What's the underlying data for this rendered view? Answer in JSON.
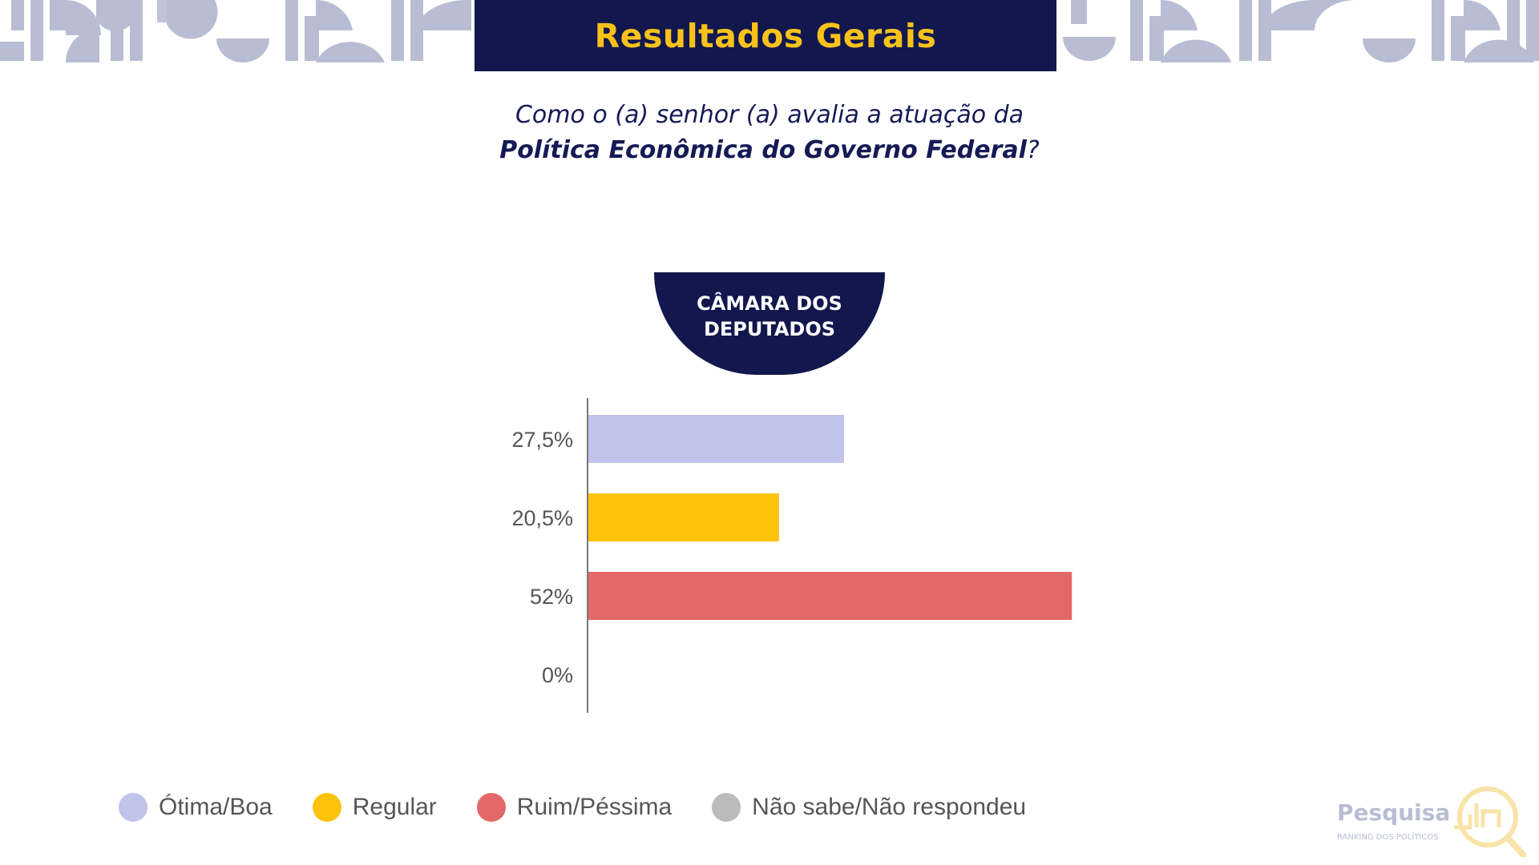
{
  "header": {
    "title": "Resultados Gerais"
  },
  "question": {
    "line1": "Como o (a) senhor (a) avalia a atuação da",
    "line2_strong": "Política Econômica do Governo Federal",
    "line2_end": "?"
  },
  "badge": {
    "line1": "CÂMARA DOS",
    "line2": "DEPUTADOS"
  },
  "chart_data": {
    "type": "bar",
    "orientation": "horizontal",
    "categories": [
      "Ótima/Boa",
      "Regular",
      "Ruim/Péssima",
      "Não sabe/Não respondeu"
    ],
    "values": [
      27.5,
      20.5,
      52,
      0
    ],
    "value_labels": [
      "27,5%",
      "20,5%",
      "52%",
      "0%"
    ],
    "colors": [
      "#c0c4ea",
      "#fdc20a",
      "#e36968",
      "#bbbbbb"
    ],
    "xlim": [
      0,
      100
    ],
    "legend_position": "bottom-left",
    "grid": false
  },
  "legend": {
    "items": [
      {
        "label": "Ótima/Boa",
        "color": "#c0c4ea"
      },
      {
        "label": "Regular",
        "color": "#fdc20a"
      },
      {
        "label": "Ruim/Péssima",
        "color": "#e36968"
      },
      {
        "label": "Não sabe/Não respondeu",
        "color": "#bbbbbb"
      }
    ]
  },
  "logo": {
    "name": "Pesquisa",
    "subtitle": "RANKING DOS POLÍTICOS"
  },
  "colors": {
    "navy": "#12174e",
    "gold": "#f8c21a",
    "pattern": "#b9bdd3"
  }
}
